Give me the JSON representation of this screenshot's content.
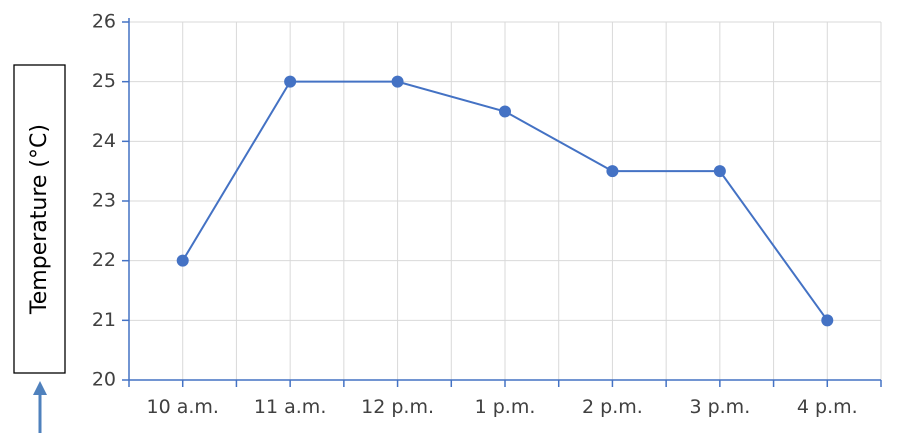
{
  "chart_data": {
    "type": "line",
    "title": "",
    "xlabel": "",
    "ylabel": "Temperature (°C)",
    "categories": [
      "10 a.m.",
      "11 a.m.",
      "12 p.m.",
      "1 p.m.",
      "2 p.m.",
      "3 p.m.",
      "4 p.m."
    ],
    "series": [
      {
        "values": [
          22,
          25,
          25,
          24.5,
          23.5,
          23.5,
          21
        ]
      }
    ],
    "ylim": [
      20,
      26
    ],
    "yticks": [
      20,
      21,
      22,
      23,
      24,
      25,
      26
    ],
    "grid": true,
    "legend": "none",
    "colors": {
      "line": "#4472C4",
      "axis": "#4472C4",
      "grid": "#d9d9d9",
      "tick_text": "#404040",
      "arrow": "#4f81bd"
    }
  }
}
